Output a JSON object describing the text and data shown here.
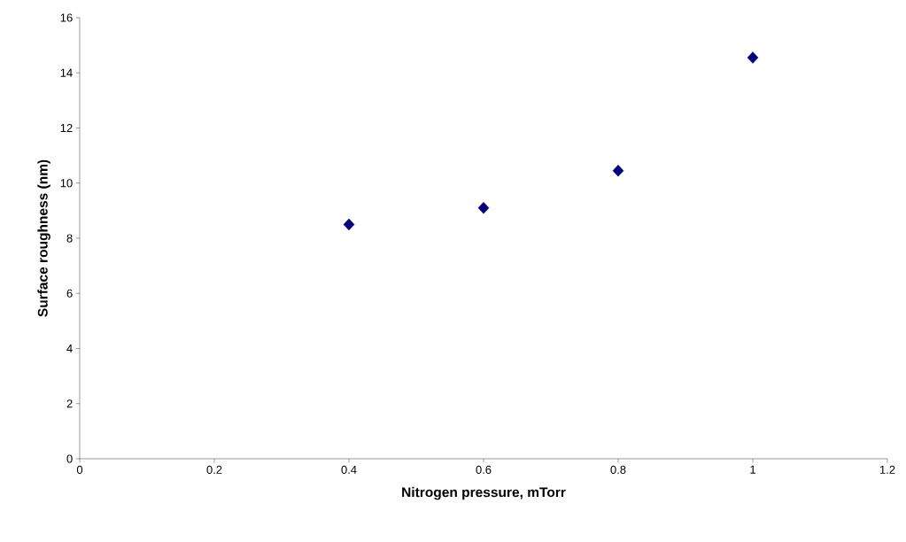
{
  "chart_data": {
    "type": "scatter",
    "xlabel": "Nitrogen pressure, mTorr",
    "ylabel": "Surface roughness (nm)",
    "x": [
      0.4,
      0.6,
      0.8,
      1.0
    ],
    "series": [
      {
        "color": "#000080",
        "values": [
          8.5,
          9.1,
          10.45,
          14.55
        ]
      }
    ],
    "xlim": [
      0,
      1.2
    ],
    "xticks": [
      0,
      0.2,
      0.4,
      0.6,
      0.8,
      1,
      1.2
    ],
    "ylim": [
      0,
      16
    ],
    "yticks": [
      0,
      2,
      4,
      6,
      8,
      10,
      12,
      14,
      16
    ],
    "grid": false,
    "marker": "diamond"
  }
}
